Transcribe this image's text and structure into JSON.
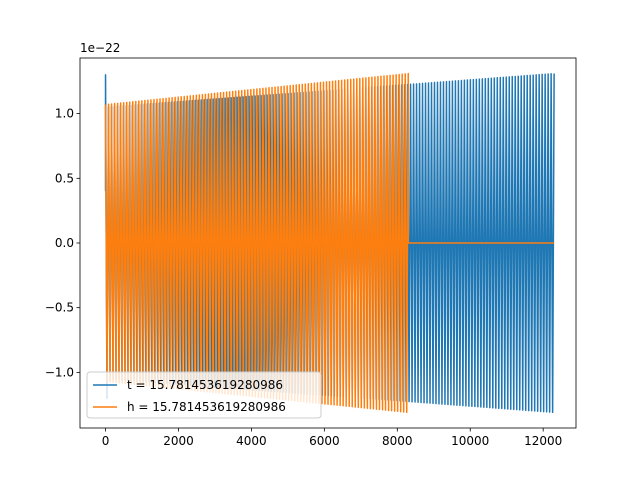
{
  "chart_data": {
    "type": "line",
    "title": "",
    "xlabel": "",
    "ylabel": "",
    "offset_text": "1e−22",
    "xlim": [
      -700,
      12900
    ],
    "ylim": [
      -1.43,
      1.43
    ],
    "x_ticks": [
      0,
      2000,
      4000,
      6000,
      8000,
      10000,
      12000
    ],
    "y_ticks": [
      -1.0,
      -0.5,
      0.0,
      0.5,
      1.0
    ],
    "y_tick_labels": [
      "−1.0",
      "−0.5",
      "0.0",
      "0.5",
      "1.0"
    ],
    "grid": false,
    "legend_position": "lower-left",
    "series": [
      {
        "name": "t = 15.781453619280986",
        "color": "#1f77b4",
        "x_end": 12300,
        "amp_start": 1.05,
        "amp_end": 1.31,
        "cycles": 150,
        "initial_spike": 1.3
      },
      {
        "name": "h = 15.781453619280986",
        "color": "#ff7f0e",
        "x_end": 8300,
        "amp_start": 1.07,
        "amp_end": 1.31,
        "cycles": 100,
        "zero_until": 12300
      }
    ]
  }
}
